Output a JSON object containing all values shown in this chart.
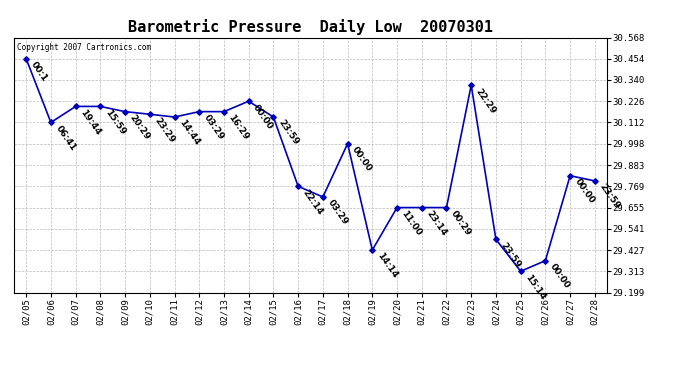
{
  "title": "Barometric Pressure  Daily Low  20070301",
  "copyright_text": "Copyright 2007 Cartronics.com",
  "dates": [
    "02/05",
    "02/06",
    "02/07",
    "02/08",
    "02/09",
    "02/10",
    "02/11",
    "02/12",
    "02/13",
    "02/14",
    "02/15",
    "02/16",
    "02/17",
    "02/18",
    "02/19",
    "02/20",
    "02/21",
    "02/22",
    "02/23",
    "02/24",
    "02/25",
    "02/26",
    "02/27",
    "02/28"
  ],
  "values": [
    30.454,
    30.112,
    30.198,
    30.198,
    30.17,
    30.156,
    30.141,
    30.17,
    30.17,
    30.226,
    30.141,
    29.769,
    29.712,
    29.998,
    29.427,
    29.655,
    29.655,
    29.655,
    30.312,
    29.484,
    29.313,
    29.37,
    29.826,
    29.798
  ],
  "annotations": [
    "00:1",
    "06:41",
    "19:44",
    "15:59",
    "20:29",
    "23:29",
    "14:44",
    "03:29",
    "16:29",
    "00:00",
    "23:59",
    "22:14",
    "03:29",
    "00:00",
    "14:14",
    "11:00",
    "23:14",
    "00:29",
    "22:29",
    "23:59",
    "15:14",
    "00:00",
    "00:00",
    "23:59"
  ],
  "line_color": "#0000bb",
  "marker_color": "#0000bb",
  "bg_color": "#ffffff",
  "grid_color": "#bbbbbb",
  "ylim_min": 29.199,
  "ylim_max": 30.568,
  "yticks": [
    29.199,
    29.313,
    29.427,
    29.541,
    29.655,
    29.769,
    29.883,
    29.998,
    30.112,
    30.226,
    30.34,
    30.454,
    30.568
  ],
  "title_fontsize": 11,
  "annotation_fontsize": 6.5,
  "annotation_rotation": -55
}
